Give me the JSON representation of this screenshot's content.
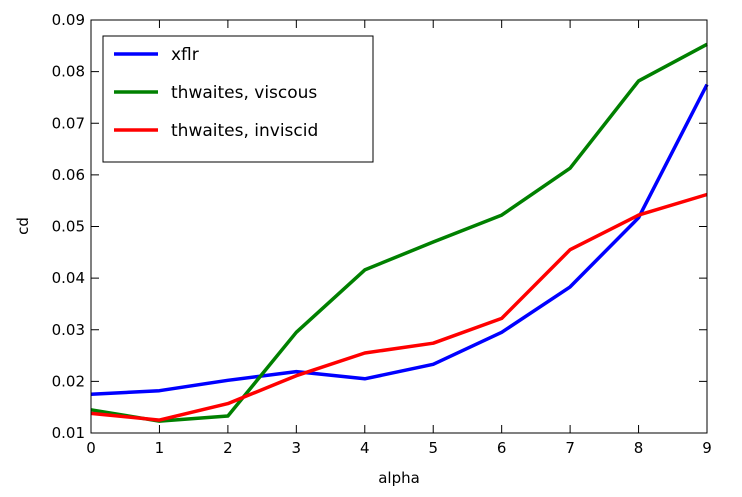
{
  "chart_data": {
    "type": "line",
    "title": "",
    "xlabel": "alpha",
    "ylabel": "cd",
    "xlim": [
      0,
      9
    ],
    "ylim": [
      0.01,
      0.09
    ],
    "x_ticks": [
      "0",
      "1",
      "2",
      "3",
      "4",
      "5",
      "6",
      "7",
      "8",
      "9"
    ],
    "y_ticks": [
      "0.01",
      "0.02",
      "0.03",
      "0.04",
      "0.05",
      "0.06",
      "0.07",
      "0.08",
      "0.09"
    ],
    "grid": false,
    "legend_position": "top-left",
    "x": [
      0,
      1,
      2,
      3,
      4,
      5,
      6,
      7,
      8,
      9
    ],
    "series": [
      {
        "name": "xflr",
        "color": "#0000ff",
        "values": [
          0.0175,
          0.0182,
          0.0202,
          0.0219,
          0.0205,
          0.0233,
          0.0295,
          0.0383,
          0.0517,
          0.0775
        ]
      },
      {
        "name": "thwaites, viscous",
        "color": "#008000",
        "values": [
          0.0145,
          0.0123,
          0.0133,
          0.0295,
          0.0416,
          0.047,
          0.0522,
          0.0613,
          0.0782,
          0.0853
        ]
      },
      {
        "name": "thwaites, inviscid",
        "color": "#ff0000",
        "values": [
          0.0138,
          0.0125,
          0.0157,
          0.0211,
          0.0255,
          0.0274,
          0.0322,
          0.0455,
          0.0522,
          0.0562
        ]
      }
    ]
  }
}
